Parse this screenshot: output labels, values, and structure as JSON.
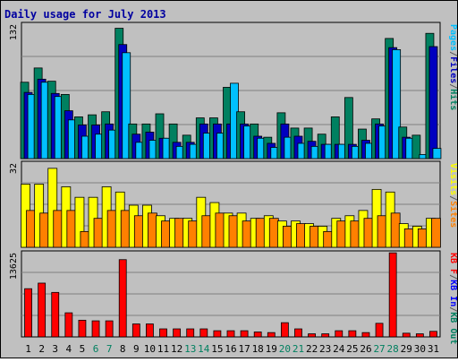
{
  "chart_data": {
    "type": "bar",
    "title": "Daily usage for July 2013",
    "categories": [
      "1",
      "2",
      "3",
      "4",
      "5",
      "6",
      "7",
      "8",
      "9",
      "10",
      "11",
      "12",
      "13",
      "14",
      "15",
      "16",
      "17",
      "18",
      "19",
      "20",
      "21",
      "22",
      "23",
      "24",
      "25",
      "26",
      "27",
      "28",
      "29",
      "30",
      "31"
    ],
    "weekend_days": [
      "6",
      "7",
      "13",
      "14",
      "20",
      "21",
      "27",
      "28"
    ],
    "panels": [
      {
        "id": "top",
        "ymax_label": "132",
        "ylim": [
          0,
          132
        ],
        "legend": [
          {
            "text": "Pages",
            "color": "#00c0ff"
          },
          {
            "text": "/",
            "color": "#5a5a5a"
          },
          {
            "text": "Files",
            "color": "#0000c0"
          },
          {
            "text": "/",
            "color": "#5a5a5a"
          },
          {
            "text": "Hits",
            "color": "#008060"
          }
        ],
        "series": [
          {
            "name": "Hits",
            "color": "#008060",
            "values": [
              75,
              89,
              76,
              63,
              41,
              43,
              46,
              128,
              34,
              34,
              44,
              34,
              23,
              40,
              40,
              70,
              46,
              34,
              21,
              45,
              30,
              30,
              24,
              41,
              60,
              29,
              39,
              118,
              31,
              23,
              123
            ]
          },
          {
            "name": "Files",
            "color": "#0000c0",
            "values": [
              65,
              78,
              64,
              47,
              33,
              33,
              34,
              112,
              24,
              26,
              20,
              16,
              16,
              34,
              34,
              34,
              34,
              22,
              15,
              34,
              22,
              17,
              14,
              14,
              14,
              18,
              34,
              109,
              21,
              0,
              110
            ]
          },
          {
            "name": "Pages",
            "color": "#00c0ff",
            "values": [
              63,
              75,
              61,
              38,
              22,
              24,
              28,
              104,
              16,
              18,
              20,
              12,
              14,
              25,
              25,
              74,
              32,
              20,
              11,
              21,
              15,
              12,
              14,
              14,
              12,
              15,
              32,
              107,
              20,
              4,
              10
            ]
          }
        ]
      },
      {
        "id": "mid",
        "ymax_label": "32",
        "ylim": [
          0,
          32
        ],
        "legend": [
          {
            "text": "Visits",
            "color": "#ffff00"
          },
          {
            "text": "/",
            "color": "#5a5a5a"
          },
          {
            "text": "Sites",
            "color": "#ff8000"
          }
        ],
        "series": [
          {
            "name": "Visits",
            "color": "#ffff00",
            "values": [
              24,
              24,
              30,
              23,
              19,
              19,
              23,
              21,
              16,
              16,
              12,
              11,
              11,
              19,
              17,
              13,
              13,
              11,
              12,
              10,
              10,
              9,
              8,
              11,
              12,
              14,
              22,
              21,
              9,
              8,
              11
            ]
          },
          {
            "name": "Sites",
            "color": "#ff8000",
            "values": [
              14,
              13,
              14,
              14,
              6,
              11,
              14,
              14,
              12,
              13,
              10,
              11,
              10,
              12,
              13,
              12,
              10,
              11,
              11,
              8,
              9,
              8,
              6,
              10,
              10,
              11,
              12,
              13,
              7,
              7,
              11
            ]
          }
        ]
      },
      {
        "id": "bot",
        "ymax_label": "13625",
        "ylim": [
          0,
          13625
        ],
        "legend": [
          {
            "text": "KB F",
            "color": "#ff0000"
          },
          {
            "text": "/",
            "color": "#5a5a5a"
          },
          {
            "text": "KB In",
            "color": "#0000ff"
          },
          {
            "text": "/",
            "color": "#5a5a5a"
          },
          {
            "text": "KB Out",
            "color": "#008060"
          }
        ],
        "series": [
          {
            "name": "KB F",
            "color": "#ff0000",
            "values": [
              7800,
              8700,
              7200,
              3900,
              2700,
              2600,
              2600,
              12500,
              2100,
              2100,
              1300,
              1300,
              1300,
              1300,
              1000,
              1000,
              1000,
              800,
              700,
              2300,
              1300,
              500,
              500,
              1000,
              1000,
              700,
              2200,
              13600,
              600,
              500,
              900
            ]
          }
        ]
      }
    ]
  }
}
